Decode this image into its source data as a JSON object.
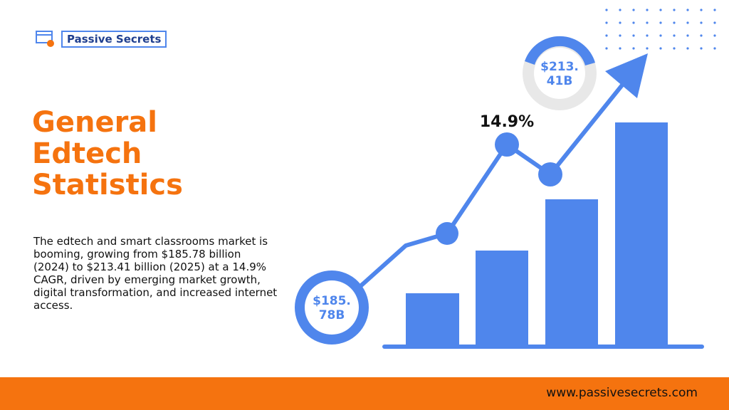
{
  "logo": {
    "text": "Passive Secrets"
  },
  "title": {
    "lines": [
      "General",
      "Edtech",
      "Statistics"
    ]
  },
  "description": "The edtech and smart classrooms market is booming, growing from $185.78 billion (2024) to $213.41 billion (2025) at a 14.9% CAGR, driven by emerging market growth, digital transformation, and increased internet access.",
  "graphic": {
    "start_label": [
      "$185.",
      "78B"
    ],
    "end_label": [
      "$213.",
      "41B"
    ],
    "growth_label": "14.9%"
  },
  "footer": {
    "url": "www.passivesecrets.com"
  }
}
